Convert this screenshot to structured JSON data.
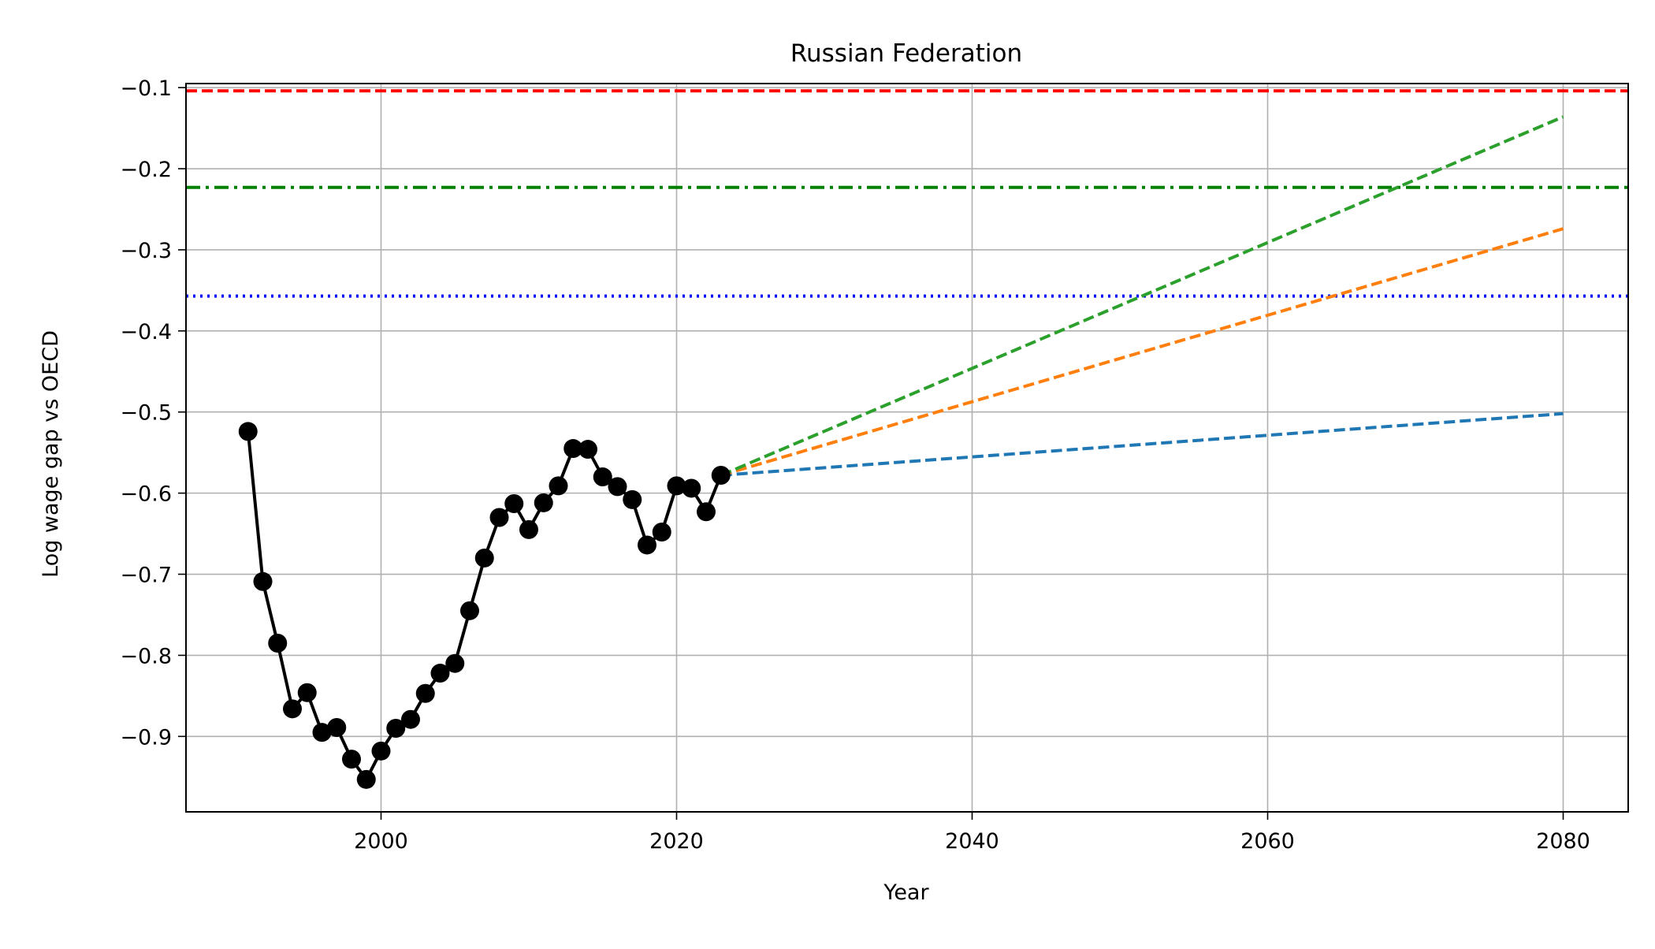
{
  "chart_data": {
    "type": "line",
    "title": "Russian Federation",
    "xlabel": "Year",
    "ylabel": "Log wage gap vs OECD",
    "xlim": [
      1986.8,
      2084.4
    ],
    "ylim": [
      -0.993,
      -0.095
    ],
    "xticks": [
      2000,
      2020,
      2040,
      2060,
      2080
    ],
    "yticks": [
      -0.1,
      -0.2,
      -0.3,
      -0.4,
      -0.5,
      -0.6,
      -0.7,
      -0.8,
      -0.9
    ],
    "grid": true,
    "historical": {
      "color": "#000000",
      "x": [
        1991,
        1992,
        1993,
        1994,
        1995,
        1996,
        1997,
        1998,
        1999,
        2000,
        2001,
        2002,
        2003,
        2004,
        2005,
        2006,
        2007,
        2008,
        2009,
        2010,
        2011,
        2012,
        2013,
        2014,
        2015,
        2016,
        2017,
        2018,
        2019,
        2020,
        2021,
        2022,
        2023
      ],
      "y": [
        -0.524,
        -0.709,
        -0.785,
        -0.866,
        -0.846,
        -0.895,
        -0.889,
        -0.928,
        -0.953,
        -0.918,
        -0.89,
        -0.879,
        -0.847,
        -0.822,
        -0.81,
        -0.745,
        -0.68,
        -0.63,
        -0.613,
        -0.645,
        -0.612,
        -0.591,
        -0.545,
        -0.546,
        -0.58,
        -0.592,
        -0.608,
        -0.664,
        -0.648,
        -0.591,
        -0.594,
        -0.623,
        -0.578
      ]
    },
    "projections": [
      {
        "color": "#1f77b4",
        "x": [
          2023,
          2080
        ],
        "y": [
          -0.578,
          -0.502
        ]
      },
      {
        "color": "#ff7f0e",
        "x": [
          2023,
          2080
        ],
        "y": [
          -0.578,
          -0.274
        ]
      },
      {
        "color": "#2ca02c",
        "x": [
          2023,
          2080
        ],
        "y": [
          -0.578,
          -0.136
        ]
      }
    ],
    "reference_lines": [
      {
        "y": -0.104,
        "color": "#ff0000",
        "style": "dashed"
      },
      {
        "y": -0.223,
        "color": "#008000",
        "style": "dashdot"
      },
      {
        "y": -0.357,
        "color": "#0000ff",
        "style": "dotted"
      }
    ]
  }
}
